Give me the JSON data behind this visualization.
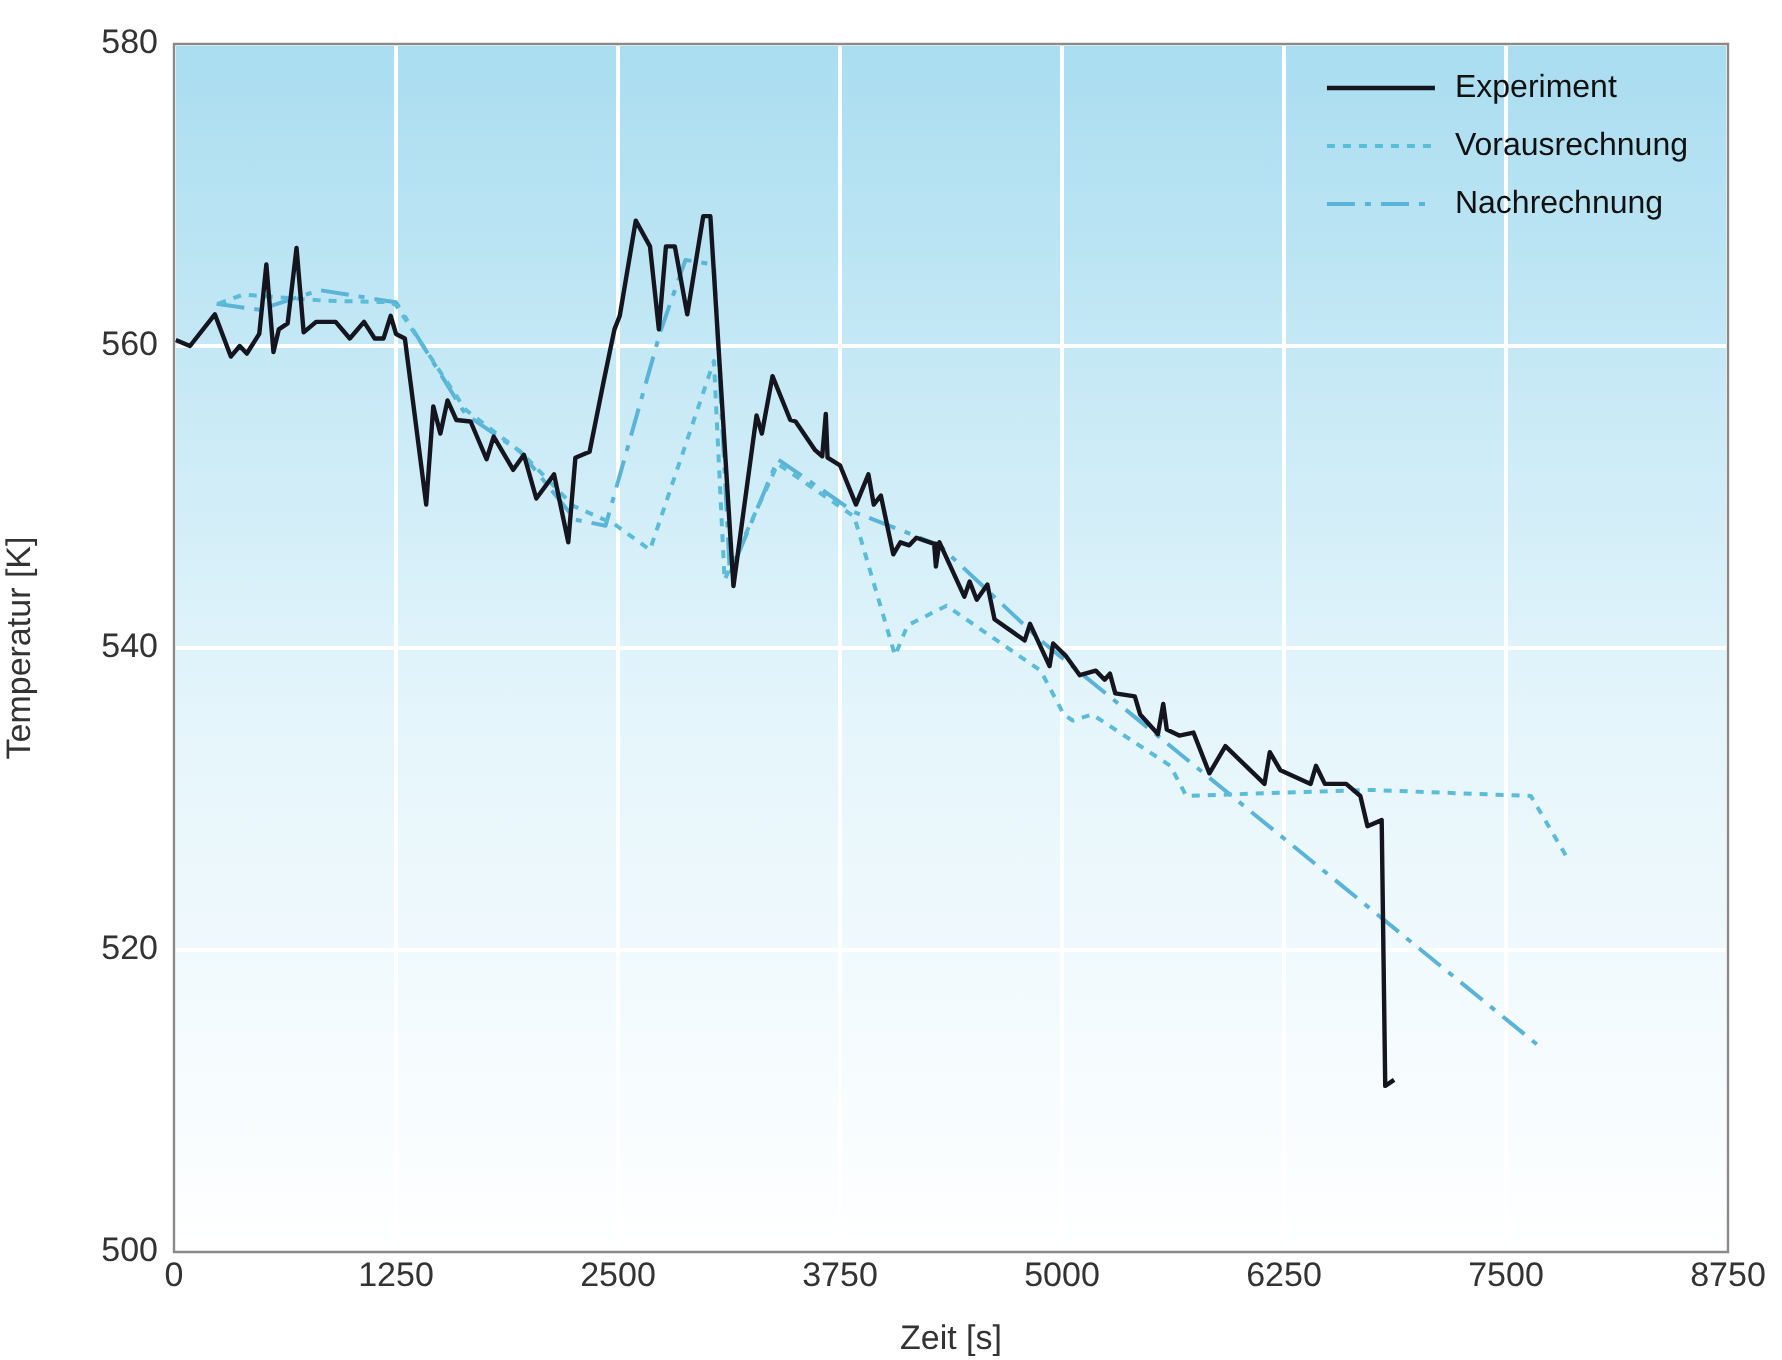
{
  "chart_data": {
    "type": "line",
    "xlabel": "Zeit [s]",
    "ylabel": "Temperatur [K]",
    "xlim": [
      0,
      8750
    ],
    "xticks": [
      0,
      1250,
      2500,
      3750,
      5000,
      6250,
      7500,
      8750
    ],
    "ylim": [
      500,
      580
    ],
    "yticks": [
      500,
      520,
      540,
      560,
      580
    ],
    "grid": true,
    "legend": "top right",
    "marker": "none",
    "series": [
      {
        "name": "Experiment",
        "color": "#15151f",
        "line_style": "solid",
        "x": [
          10,
          90,
          230,
          320,
          370,
          410,
          480,
          520,
          560,
          590,
          640,
          690,
          730,
          800,
          910,
          990,
          1070,
          1130,
          1180,
          1220,
          1250,
          1300,
          1420,
          1460,
          1500,
          1540,
          1590,
          1670,
          1760,
          1800,
          1910,
          1970,
          2040,
          2140,
          2220,
          2260,
          2340,
          2420,
          2480,
          2510,
          2600,
          2680,
          2730,
          2770,
          2820,
          2890,
          2980,
          3020,
          3150,
          3280,
          3310,
          3370,
          3470,
          3500,
          3610,
          3650,
          3670,
          3680,
          3750,
          3840,
          3910,
          3940,
          3980,
          4050,
          4090,
          4140,
          4180,
          4280,
          4290,
          4310,
          4450,
          4480,
          4520,
          4580,
          4620,
          4790,
          4820,
          4930,
          4950,
          5020,
          5100,
          5190,
          5240,
          5270,
          5300,
          5410,
          5440,
          5540,
          5570,
          5590,
          5660,
          5740,
          5830,
          5920,
          6140,
          6170,
          6230,
          6400,
          6430,
          6480,
          6600,
          6680,
          6720,
          6800,
          6820,
          6870
        ],
        "values": [
          560.4,
          560,
          562.1,
          559.3,
          560,
          559.5,
          560.8,
          565.4,
          559.6,
          561.1,
          561.5,
          566.5,
          560.9,
          561.6,
          561.6,
          560.5,
          561.6,
          560.5,
          560.5,
          562,
          560.8,
          560.5,
          549.5,
          556,
          554.2,
          556.4,
          555.1,
          555,
          552.5,
          554,
          551.8,
          552.8,
          549.9,
          551.5,
          547,
          552.6,
          553,
          557.7,
          561.1,
          562,
          568.3,
          566.6,
          561.1,
          566.6,
          566.6,
          562.1,
          568.6,
          568.6,
          544.1,
          555.4,
          554.2,
          558,
          555.1,
          555,
          553.1,
          552.7,
          555.5,
          552.6,
          552.1,
          549.5,
          551.5,
          549.5,
          550.1,
          546.2,
          547,
          546.8,
          547.3,
          546.9,
          545.4,
          547,
          543.4,
          544.4,
          543.2,
          544.2,
          541.9,
          540.5,
          541.6,
          538.8,
          540.3,
          539.5,
          538.2,
          538.5,
          537.9,
          538.3,
          537,
          536.8,
          535.6,
          534.3,
          536.3,
          534.6,
          534.2,
          534.4,
          531.7,
          533.5,
          531,
          533.1,
          531.9,
          531,
          532.2,
          531,
          531,
          530.2,
          528.2,
          528.6,
          511,
          511.4
        ]
      },
      {
        "name": "Vorausrechnung",
        "color": "#5bbcd8",
        "line_style": "dotted",
        "x": [
          250,
          390,
          850,
          1220,
          1250,
          1640,
          1950,
          2250,
          2480,
          2680,
          3040,
          3100,
          3400,
          3830,
          4060,
          4130,
          4350,
          4880,
          5010,
          5060,
          5170,
          5610,
          5700,
          5940,
          6740,
          7640,
          7840
        ],
        "values": [
          562.8,
          563.4,
          563,
          562.9,
          562.7,
          555.8,
          553,
          549.4,
          548.2,
          546.5,
          559,
          544.5,
          552.2,
          548.7,
          539.5,
          541.5,
          542.8,
          538.5,
          535.6,
          535.2,
          535.6,
          532.2,
          530.2,
          530.3,
          530.6,
          530.2,
          526.2
        ]
      },
      {
        "name": "Nachrechnung",
        "color": "#5ab4d8",
        "line_style": "dashed",
        "x": [
          240,
          480,
          820,
          1190,
          1250,
          1640,
          1950,
          2260,
          2430,
          2740,
          2880,
          3040,
          3130,
          3400,
          3830,
          4310,
          4880,
          7690
        ],
        "values": [
          562.8,
          562.4,
          563.7,
          563,
          562.9,
          555.5,
          553,
          548.5,
          548.1,
          561,
          565.7,
          565.4,
          544.9,
          552.5,
          549,
          546.8,
          540.5,
          513.6
        ]
      }
    ]
  }
}
